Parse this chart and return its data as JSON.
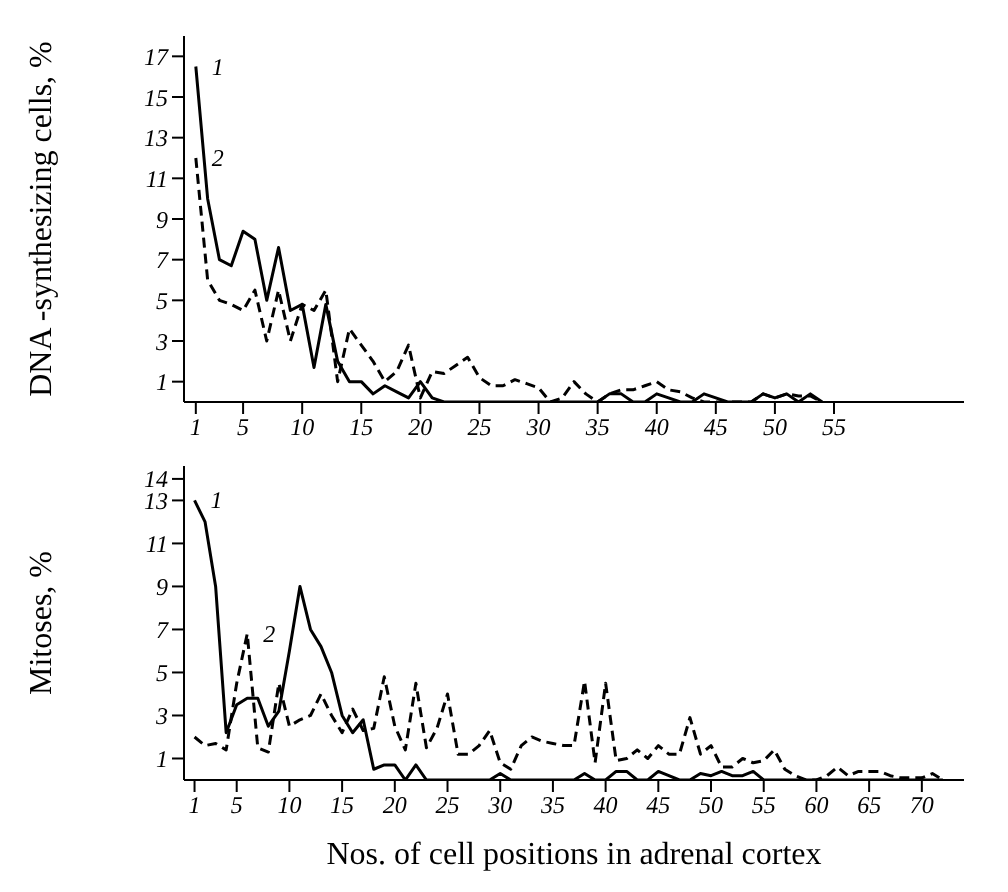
{
  "chart_data": [
    {
      "type": "line",
      "ylabel": "DNA -synthesizing cells, %",
      "x": [
        1,
        2,
        3,
        4,
        5,
        6,
        7,
        8,
        9,
        10,
        11,
        12,
        13,
        14,
        15,
        16,
        17,
        18,
        19,
        20,
        21,
        22,
        23,
        24,
        25,
        26,
        27,
        28,
        29,
        30,
        31,
        32,
        33,
        34,
        35,
        36,
        37,
        38,
        39,
        40,
        41,
        42,
        43,
        44,
        45,
        46,
        47,
        48,
        49,
        50,
        51,
        52,
        53,
        54
      ],
      "series": [
        {
          "name": "1",
          "color": "#000000",
          "line_style": "solid",
          "values": [
            16.5,
            10,
            7,
            6.7,
            8.4,
            8,
            5,
            7.6,
            4.5,
            4.8,
            1.7,
            4.8,
            2,
            1,
            1,
            0.4,
            0.8,
            0.5,
            0.2,
            1,
            0.2,
            0,
            0,
            0,
            0,
            0,
            0,
            0,
            0,
            0,
            0,
            0,
            0,
            0,
            0,
            0.4,
            0.4,
            0,
            0,
            0.4,
            0.2,
            0,
            0,
            0.4,
            0.2,
            0,
            0,
            0,
            0.4,
            0.2,
            0.4,
            0,
            0.4,
            0
          ]
        },
        {
          "name": "2",
          "color": "#000000",
          "line_style": "dashed",
          "values": [
            12,
            6,
            5,
            4.8,
            4.5,
            5.5,
            3,
            5.5,
            3,
            4.8,
            4.5,
            5.5,
            1,
            3.6,
            2.8,
            2,
            1,
            1.5,
            2.8,
            0.2,
            1.5,
            1.4,
            1.8,
            2.2,
            1.2,
            0.8,
            0.8,
            1.1,
            0.9,
            0.7,
            0,
            0.2,
            1,
            0.4,
            0,
            0.4,
            0.6,
            0.6,
            0.8,
            1,
            0.6,
            0.5,
            0.2,
            0,
            0,
            0,
            0,
            0,
            0.4,
            0.2,
            0.4,
            0.3,
            0.3,
            0
          ]
        }
      ],
      "xlim": [
        0,
        66
      ],
      "xticks": [
        1,
        5,
        10,
        15,
        20,
        25,
        30,
        35,
        40,
        45,
        50,
        55
      ],
      "ylim": [
        0,
        18
      ],
      "yticks": [
        1,
        3,
        5,
        7,
        9,
        11,
        13,
        15,
        17
      ],
      "grid": false,
      "legend": false,
      "marker": "none"
    },
    {
      "type": "line",
      "xlabel": "Nos. of cell positions in adrenal cortex",
      "ylabel": "Mitoses, %",
      "x": [
        1,
        2,
        3,
        4,
        5,
        6,
        7,
        8,
        9,
        10,
        11,
        12,
        13,
        14,
        15,
        16,
        17,
        18,
        19,
        20,
        21,
        22,
        23,
        24,
        25,
        26,
        27,
        28,
        29,
        30,
        31,
        32,
        33,
        34,
        35,
        36,
        37,
        38,
        39,
        40,
        41,
        42,
        43,
        44,
        45,
        46,
        47,
        48,
        49,
        50,
        51,
        52,
        53,
        54,
        55,
        56,
        57,
        58,
        59,
        60,
        61,
        62,
        63,
        64,
        65,
        66,
        67,
        68,
        69,
        70,
        71,
        72
      ],
      "series": [
        {
          "name": "1",
          "color": "#000000",
          "line_style": "solid",
          "values": [
            13,
            12,
            9,
            2.2,
            3.5,
            3.8,
            3.8,
            2.5,
            3.2,
            6,
            9,
            7,
            6.2,
            5,
            3,
            2.2,
            2.8,
            0.5,
            0.7,
            0.7,
            0,
            0.7,
            0,
            0,
            0,
            0,
            0,
            0,
            0,
            0.3,
            0,
            0,
            0,
            0,
            0,
            0,
            0,
            0.3,
            0,
            0,
            0.4,
            0.4,
            0,
            0,
            0.4,
            0.2,
            0,
            0,
            0.3,
            0.2,
            0.4,
            0.2,
            0.2,
            0.4,
            0,
            0,
            0,
            0,
            0,
            0,
            0,
            0,
            0,
            0,
            0,
            0,
            0,
            0,
            0,
            0,
            0,
            0
          ]
        },
        {
          "name": "2",
          "color": "#000000",
          "line_style": "dashed",
          "values": [
            2,
            1.6,
            1.7,
            1.4,
            4.5,
            6.8,
            1.5,
            1.3,
            4.5,
            2.5,
            2.8,
            3,
            4,
            3,
            2.2,
            3.3,
            2.3,
            2.4,
            4.8,
            2.5,
            1.4,
            4.5,
            1.5,
            2.4,
            4,
            1.2,
            1.2,
            1.6,
            2.3,
            0.8,
            0.5,
            1.6,
            2,
            1.8,
            1.7,
            1.6,
            1.6,
            4.6,
            0.8,
            4.5,
            0.9,
            1,
            1.4,
            1,
            1.6,
            1.2,
            1.2,
            2.9,
            1.2,
            1.6,
            0.6,
            0.6,
            1,
            0.8,
            0.9,
            1.4,
            0.5,
            0.2,
            0,
            0,
            0.2,
            0.6,
            0.2,
            0.4,
            0.4,
            0.4,
            0.2,
            0.1,
            0.1,
            0.1,
            0.3,
            0
          ]
        }
      ],
      "xlim": [
        0,
        74
      ],
      "xticks": [
        1,
        5,
        10,
        15,
        20,
        25,
        30,
        35,
        40,
        45,
        50,
        55,
        60,
        65,
        70
      ],
      "ylim": [
        0,
        14.6
      ],
      "yticks": [
        1,
        3,
        5,
        7,
        9,
        11,
        13,
        14
      ],
      "grid": false,
      "legend": false,
      "marker": "none"
    }
  ]
}
